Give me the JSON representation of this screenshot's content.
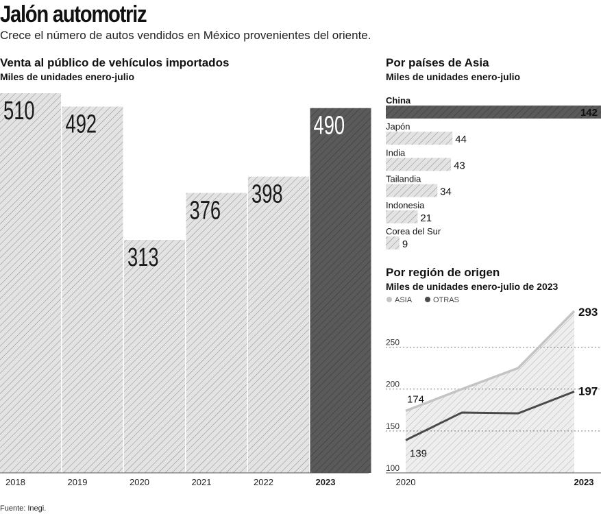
{
  "header": {
    "title": "Jalón automotriz",
    "subtitle": "Crece el número de autos vendidos en México provenientes del oriente."
  },
  "colors": {
    "light_fill": "#e3e3e3",
    "dark_fill": "#5a5a5a",
    "hatch": "#8a8a8a",
    "asia_line": "#c4c4c4",
    "otras_line": "#4a4a4a"
  },
  "chart_data": [
    {
      "id": "imports",
      "type": "bar",
      "title": "Venta al público de vehículos importados",
      "subtitle": "Miles de unidades enero-julio",
      "categories": [
        "2018",
        "2019",
        "2020",
        "2021",
        "2022",
        "2023"
      ],
      "values": [
        510,
        492,
        313,
        376,
        398,
        490
      ],
      "highlight": "2023",
      "ylim": [
        0,
        510
      ]
    },
    {
      "id": "countries",
      "type": "bar",
      "orientation": "horizontal",
      "title": "Por países de Asia",
      "subtitle": "Miles de unidades enero-julio",
      "categories": [
        "China",
        "Japón",
        "India",
        "Tailandia",
        "Indonesia",
        "Corea del Sur"
      ],
      "values": [
        142,
        44,
        43,
        34,
        21,
        9
      ],
      "highlight": "China"
    },
    {
      "id": "region",
      "type": "line",
      "title": "Por región de origen",
      "subtitle": "Miles de unidades enero-julio de 2023",
      "x": [
        2020,
        2021,
        2022,
        2023
      ],
      "xlabels": [
        "2020",
        "2023"
      ],
      "series": [
        {
          "name": "ASIA",
          "values": [
            174,
            200,
            225,
            293
          ]
        },
        {
          "name": "OTRAS",
          "values": [
            139,
            172,
            171,
            197
          ]
        }
      ],
      "labels": {
        "asia_start": "174",
        "asia_end": "293",
        "otras_start": "139",
        "otras_end": "197"
      },
      "yticks": [
        100,
        150,
        200,
        250
      ],
      "ylim": [
        100,
        300
      ]
    }
  ],
  "footer": {
    "source": "Fuente: Inegi."
  }
}
